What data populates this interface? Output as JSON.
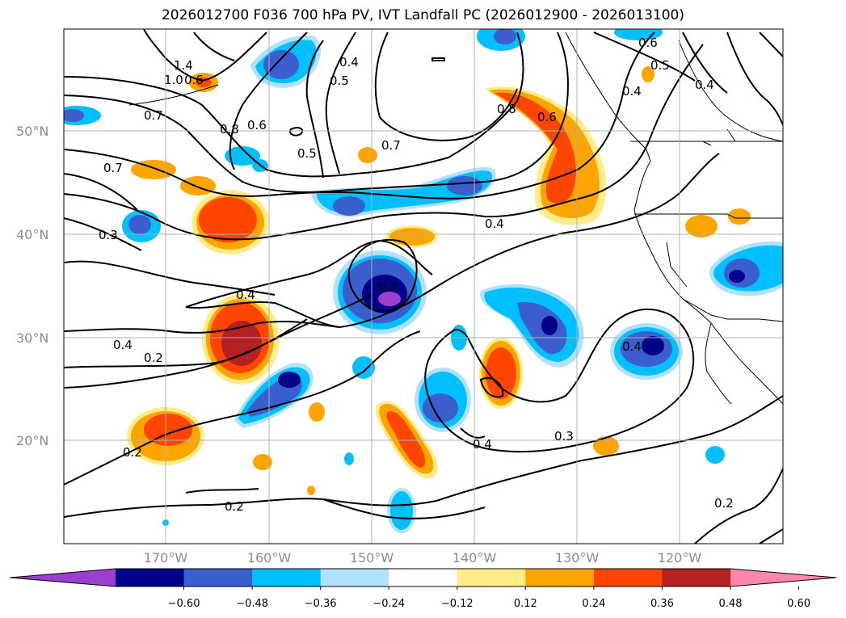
{
  "title": "2026012700 F036 700 hPa PV, IVT Landfall PC (2026012900 - 2026013100)",
  "lat_labels": [
    "50°N",
    "40°N",
    "30°N",
    "20°N"
  ],
  "lon_labels": [
    "170°W",
    "160°W",
    "150°W",
    "140°W",
    "130°W",
    "120°W"
  ],
  "contour_labels": [
    "1.4",
    "1.0",
    "0.6",
    "0.5",
    "0.4",
    "0.8",
    "0.6",
    "0.7",
    "0.6",
    "0.8",
    "0.6",
    "0.5",
    "0.7",
    "0.4",
    "0.7",
    "0.5",
    "0.4",
    "0.3",
    "0.4",
    "0.4",
    "0.2",
    "0.3",
    "0.4",
    "0.4",
    "0.3",
    "0.2",
    "0.2",
    "0.2",
    "0.4"
  ],
  "colorbar": {
    "ticks": [
      "−0.60",
      "−0.48",
      "−0.36",
      "−0.24",
      "−0.12",
      "0.12",
      "0.24",
      "0.36",
      "0.48",
      "0.60"
    ],
    "colors": [
      "#9a3fd0",
      "#00008b",
      "#3a5fcd",
      "#00bfff",
      "#b0e2ff",
      "#ffffff",
      "#ffec8b",
      "#ffa500",
      "#ff4500",
      "#b22222",
      "#ff88aa"
    ]
  }
}
